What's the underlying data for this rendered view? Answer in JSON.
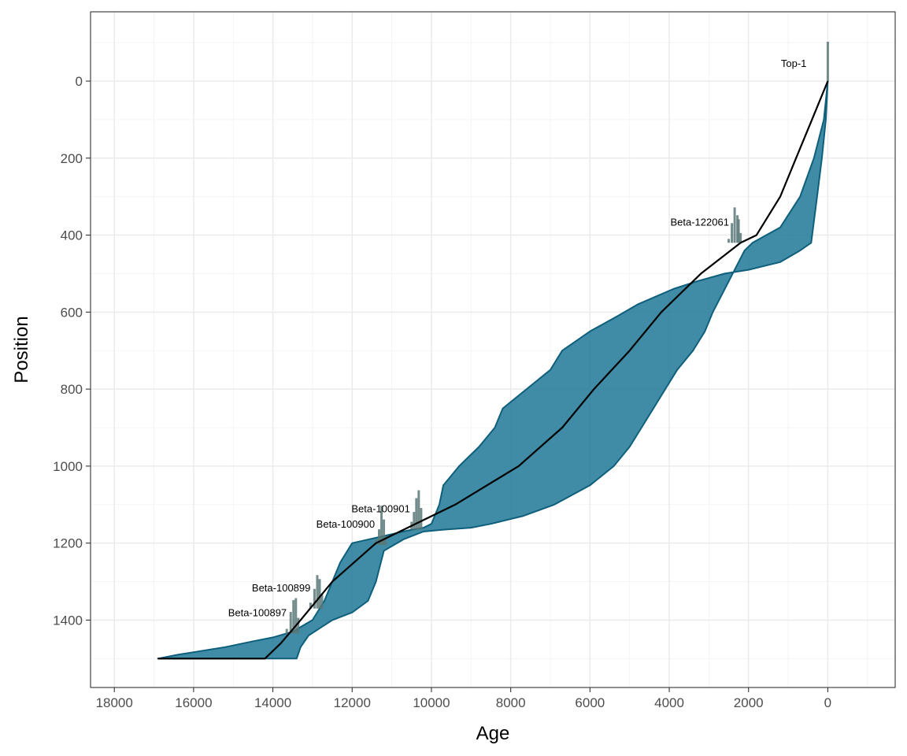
{
  "chart_data": {
    "type": "area",
    "xlabel": "Age",
    "ylabel": "Position",
    "xlim": [
      18600,
      -1700
    ],
    "ylim": [
      -180,
      1575
    ],
    "x_ticks": [
      18000,
      16000,
      14000,
      12000,
      10000,
      8000,
      6000,
      4000,
      2000,
      0
    ],
    "y_ticks": [
      0,
      200,
      400,
      600,
      800,
      1000,
      1200,
      1400
    ],
    "grid": true,
    "colors": {
      "band_fill": "#1f7896",
      "band_stroke": "#0e5f7c",
      "median_line": "#000000",
      "dates": "#5a7878",
      "grid": "#ebebeb",
      "panel_border": "#333333"
    },
    "bounds": {
      "old": [
        [
          0,
          0
        ],
        [
          100,
          50
        ],
        [
          200,
          150
        ],
        [
          300,
          270
        ],
        [
          380,
          370
        ],
        [
          420,
          420
        ],
        [
          440,
          700
        ],
        [
          470,
          1200
        ],
        [
          480,
          1600
        ],
        [
          490,
          2000
        ],
        [
          500,
          2600
        ],
        [
          520,
          3300
        ],
        [
          540,
          3900
        ],
        [
          560,
          4350
        ],
        [
          580,
          4800
        ],
        [
          610,
          5300
        ],
        [
          650,
          6000
        ],
        [
          700,
          6700
        ],
        [
          750,
          7000
        ],
        [
          800,
          7600
        ],
        [
          850,
          8200
        ],
        [
          900,
          8400
        ],
        [
          950,
          8800
        ],
        [
          1000,
          9300
        ],
        [
          1050,
          9700
        ],
        [
          1100,
          9800
        ],
        [
          1150,
          10000
        ],
        [
          1160,
          10200
        ],
        [
          1165,
          10500
        ],
        [
          1200,
          12000
        ],
        [
          1250,
          12300
        ],
        [
          1300,
          12500
        ],
        [
          1350,
          12700
        ],
        [
          1400,
          13000
        ],
        [
          1430,
          13500
        ],
        [
          1445,
          14000
        ],
        [
          1455,
          14500
        ],
        [
          1470,
          15200
        ],
        [
          1490,
          16400
        ],
        [
          1500,
          16900
        ]
      ],
      "young": [
        [
          0,
          0
        ],
        [
          100,
          100
        ],
        [
          200,
          350
        ],
        [
          300,
          700
        ],
        [
          380,
          1200
        ],
        [
          420,
          1900
        ],
        [
          440,
          2100
        ],
        [
          480,
          2300
        ],
        [
          500,
          2400
        ],
        [
          560,
          2700
        ],
        [
          600,
          2900
        ],
        [
          650,
          3100
        ],
        [
          700,
          3400
        ],
        [
          750,
          3800
        ],
        [
          800,
          4100
        ],
        [
          850,
          4400
        ],
        [
          900,
          4700
        ],
        [
          950,
          5000
        ],
        [
          1000,
          5400
        ],
        [
          1050,
          6000
        ],
        [
          1100,
          6900
        ],
        [
          1130,
          7700
        ],
        [
          1150,
          8500
        ],
        [
          1160,
          9000
        ],
        [
          1165,
          9700
        ],
        [
          1170,
          10200
        ],
        [
          1190,
          10700
        ],
        [
          1220,
          11200
        ],
        [
          1260,
          11300
        ],
        [
          1300,
          11400
        ],
        [
          1350,
          11600
        ],
        [
          1380,
          12000
        ],
        [
          1400,
          12500
        ],
        [
          1420,
          12800
        ],
        [
          1440,
          13100
        ],
        [
          1470,
          13300
        ],
        [
          1500,
          13400
        ]
      ]
    },
    "median": [
      [
        0,
        0
      ],
      [
        100,
        400
      ],
      [
        200,
        800
      ],
      [
        300,
        1200
      ],
      [
        400,
        1800
      ],
      [
        420,
        2200
      ],
      [
        500,
        3200
      ],
      [
        600,
        4200
      ],
      [
        700,
        5000
      ],
      [
        800,
        5900
      ],
      [
        900,
        6700
      ],
      [
        1000,
        7800
      ],
      [
        1100,
        9400
      ],
      [
        1160,
        10600
      ],
      [
        1180,
        11000
      ],
      [
        1200,
        11400
      ],
      [
        1300,
        12500
      ],
      [
        1400,
        13300
      ],
      [
        1460,
        13800
      ],
      [
        1500,
        14200
      ],
      [
        1500,
        16900
      ]
    ],
    "dates": [
      {
        "label": "Top-1",
        "depth": 0,
        "ages": [
          0
        ],
        "heights": [
          100
        ]
      },
      {
        "label": "Beta-122061",
        "depth": 420,
        "ages": [
          2500,
          2420,
          2350,
          2280,
          2250,
          2200
        ],
        "heights": [
          10,
          50,
          90,
          70,
          60,
          25
        ]
      },
      {
        "label": "Beta-100901",
        "depth": 1165,
        "ages": [
          10500,
          10440,
          10380,
          10320,
          10260
        ],
        "heights": [
          20,
          45,
          80,
          100,
          55
        ]
      },
      {
        "label": "Beta-100900",
        "depth": 1205,
        "ages": [
          11400,
          11320,
          11260,
          11200,
          11160
        ],
        "heights": [
          15,
          40,
          100,
          65,
          20
        ]
      },
      {
        "label": "Beta-100899",
        "depth": 1370,
        "ages": [
          13050,
          12950,
          12880,
          12820,
          12760
        ],
        "heights": [
          15,
          50,
          85,
          75,
          35
        ]
      },
      {
        "label": "Beta-100897",
        "depth": 1435,
        "ages": [
          13650,
          13550,
          13480,
          13420,
          13360
        ],
        "heights": [
          12,
          55,
          85,
          90,
          40
        ]
      }
    ]
  }
}
